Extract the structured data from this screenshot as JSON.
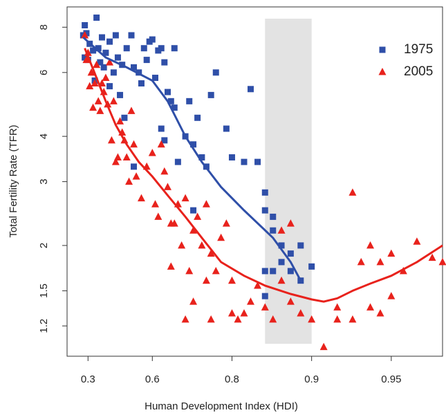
{
  "chart_data": {
    "type": "scatter",
    "x_label": "Human Development Index (HDI)",
    "y_label": "Total Fertility Rate (TFR)",
    "xscale": "neglog1m",
    "yscale": "log",
    "xlim": [
      0.16,
      0.968
    ],
    "ylim": [
      0.99,
      9.1
    ],
    "xticks": [
      0.3,
      0.6,
      0.8,
      0.9,
      0.95
    ],
    "yticks": [
      1.2,
      1.5,
      2,
      3,
      4,
      6,
      8
    ],
    "highlight_band": [
      0.85,
      0.9
    ],
    "legend": "upper right",
    "series": [
      {
        "name": "1975",
        "color": "#2f4fa8",
        "marker": "square",
        "x": [
          0.27,
          0.28,
          0.29,
          0.28,
          0.3,
          0.31,
          0.33,
          0.35,
          0.34,
          0.36,
          0.37,
          0.38,
          0.39,
          0.4,
          0.42,
          0.42,
          0.44,
          0.45,
          0.46,
          0.47,
          0.48,
          0.5,
          0.52,
          0.53,
          0.55,
          0.56,
          0.57,
          0.58,
          0.59,
          0.6,
          0.61,
          0.62,
          0.63,
          0.64,
          0.65,
          0.66,
          0.67,
          0.67,
          0.68,
          0.63,
          0.64,
          0.7,
          0.71,
          0.72,
          0.73,
          0.74,
          0.75,
          0.76,
          0.77,
          0.79,
          0.8,
          0.82,
          0.83,
          0.84,
          0.85,
          0.85,
          0.86,
          0.86,
          0.87,
          0.87,
          0.88,
          0.89,
          0.88,
          0.89,
          0.86,
          0.85,
          0.85,
          0.9,
          0.72,
          0.53,
          0.49
        ],
        "values": [
          7.6,
          8.1,
          7.7,
          6.6,
          6.5,
          7.2,
          6.9,
          8.5,
          5.7,
          7.0,
          6.4,
          7.5,
          6.2,
          6.8,
          5.5,
          7.3,
          6.0,
          7.6,
          6.6,
          5.2,
          6.3,
          7.0,
          7.6,
          6.2,
          6.0,
          5.6,
          7.0,
          6.5,
          7.3,
          7.4,
          5.8,
          6.9,
          7.0,
          6.4,
          5.3,
          5.0,
          4.8,
          7.0,
          3.4,
          4.2,
          3.9,
          4.0,
          5.0,
          3.8,
          4.5,
          3.5,
          3.3,
          5.2,
          6.0,
          4.2,
          3.5,
          3.4,
          5.4,
          3.4,
          2.8,
          2.5,
          2.4,
          2.2,
          2.0,
          1.8,
          1.9,
          2.0,
          1.7,
          1.6,
          1.7,
          1.45,
          1.7,
          1.75,
          2.5,
          3.3,
          4.5
        ],
        "trend": {
          "x": [
            0.27,
            0.4,
            0.5,
            0.6,
            0.65,
            0.7,
            0.74,
            0.78,
            0.82,
            0.86,
            0.88,
            0.89
          ],
          "values": [
            7.5,
            6.6,
            6.2,
            5.7,
            5.0,
            4.0,
            3.4,
            2.9,
            2.5,
            2.1,
            1.8,
            1.6
          ]
        }
      },
      {
        "name": "2005",
        "color": "#e8221c",
        "marker": "triangle",
        "x": [
          0.28,
          0.29,
          0.3,
          0.31,
          0.32,
          0.33,
          0.34,
          0.35,
          0.36,
          0.37,
          0.38,
          0.39,
          0.4,
          0.41,
          0.42,
          0.43,
          0.44,
          0.45,
          0.46,
          0.47,
          0.48,
          0.49,
          0.5,
          0.51,
          0.52,
          0.53,
          0.54,
          0.56,
          0.58,
          0.6,
          0.61,
          0.62,
          0.63,
          0.64,
          0.65,
          0.66,
          0.67,
          0.68,
          0.69,
          0.7,
          0.71,
          0.72,
          0.73,
          0.74,
          0.75,
          0.76,
          0.77,
          0.78,
          0.79,
          0.8,
          0.8,
          0.81,
          0.82,
          0.83,
          0.84,
          0.85,
          0.86,
          0.87,
          0.87,
          0.88,
          0.88,
          0.89,
          0.9,
          0.91,
          0.92,
          0.93,
          0.94,
          0.945,
          0.95,
          0.935,
          0.94,
          0.945,
          0.95,
          0.955,
          0.96,
          0.965,
          0.968,
          0.92,
          0.93,
          0.7,
          0.75,
          0.76,
          0.66,
          0.72
        ],
        "values": [
          7.6,
          6.5,
          6.8,
          5.5,
          6.0,
          4.8,
          5.6,
          6.3,
          5.0,
          4.7,
          5.6,
          5.3,
          5.8,
          4.9,
          6.4,
          3.9,
          5.0,
          3.4,
          3.5,
          4.4,
          4.1,
          3.9,
          3.5,
          3.0,
          4.7,
          3.8,
          3.1,
          2.7,
          3.3,
          3.6,
          2.6,
          2.4,
          3.8,
          3.2,
          2.9,
          2.3,
          2.3,
          2.6,
          2.0,
          2.7,
          1.7,
          2.2,
          2.4,
          2.0,
          2.6,
          1.9,
          1.7,
          2.1,
          2.3,
          1.6,
          1.3,
          1.25,
          1.3,
          1.4,
          1.55,
          1.35,
          1.25,
          1.6,
          2.2,
          2.3,
          1.4,
          1.3,
          1.25,
          1.05,
          1.25,
          2.8,
          1.35,
          1.3,
          1.45,
          1.8,
          2.0,
          1.8,
          1.9,
          1.7,
          2.05,
          1.85,
          1.8,
          1.35,
          1.25,
          1.25,
          1.6,
          1.25,
          1.75,
          1.4
        ],
        "trend": {
          "x": [
            0.28,
            0.35,
            0.4,
            0.45,
            0.5,
            0.55,
            0.6,
            0.65,
            0.7,
            0.74,
            0.78,
            0.82,
            0.85,
            0.88,
            0.9,
            0.91,
            0.92,
            0.93,
            0.94,
            0.95,
            0.96,
            0.968
          ],
          "values": [
            7.0,
            5.8,
            5.0,
            4.3,
            3.8,
            3.4,
            3.1,
            2.75,
            2.4,
            2.1,
            1.8,
            1.65,
            1.55,
            1.47,
            1.42,
            1.4,
            1.43,
            1.5,
            1.57,
            1.65,
            1.8,
            2.0
          ]
        }
      }
    ]
  }
}
